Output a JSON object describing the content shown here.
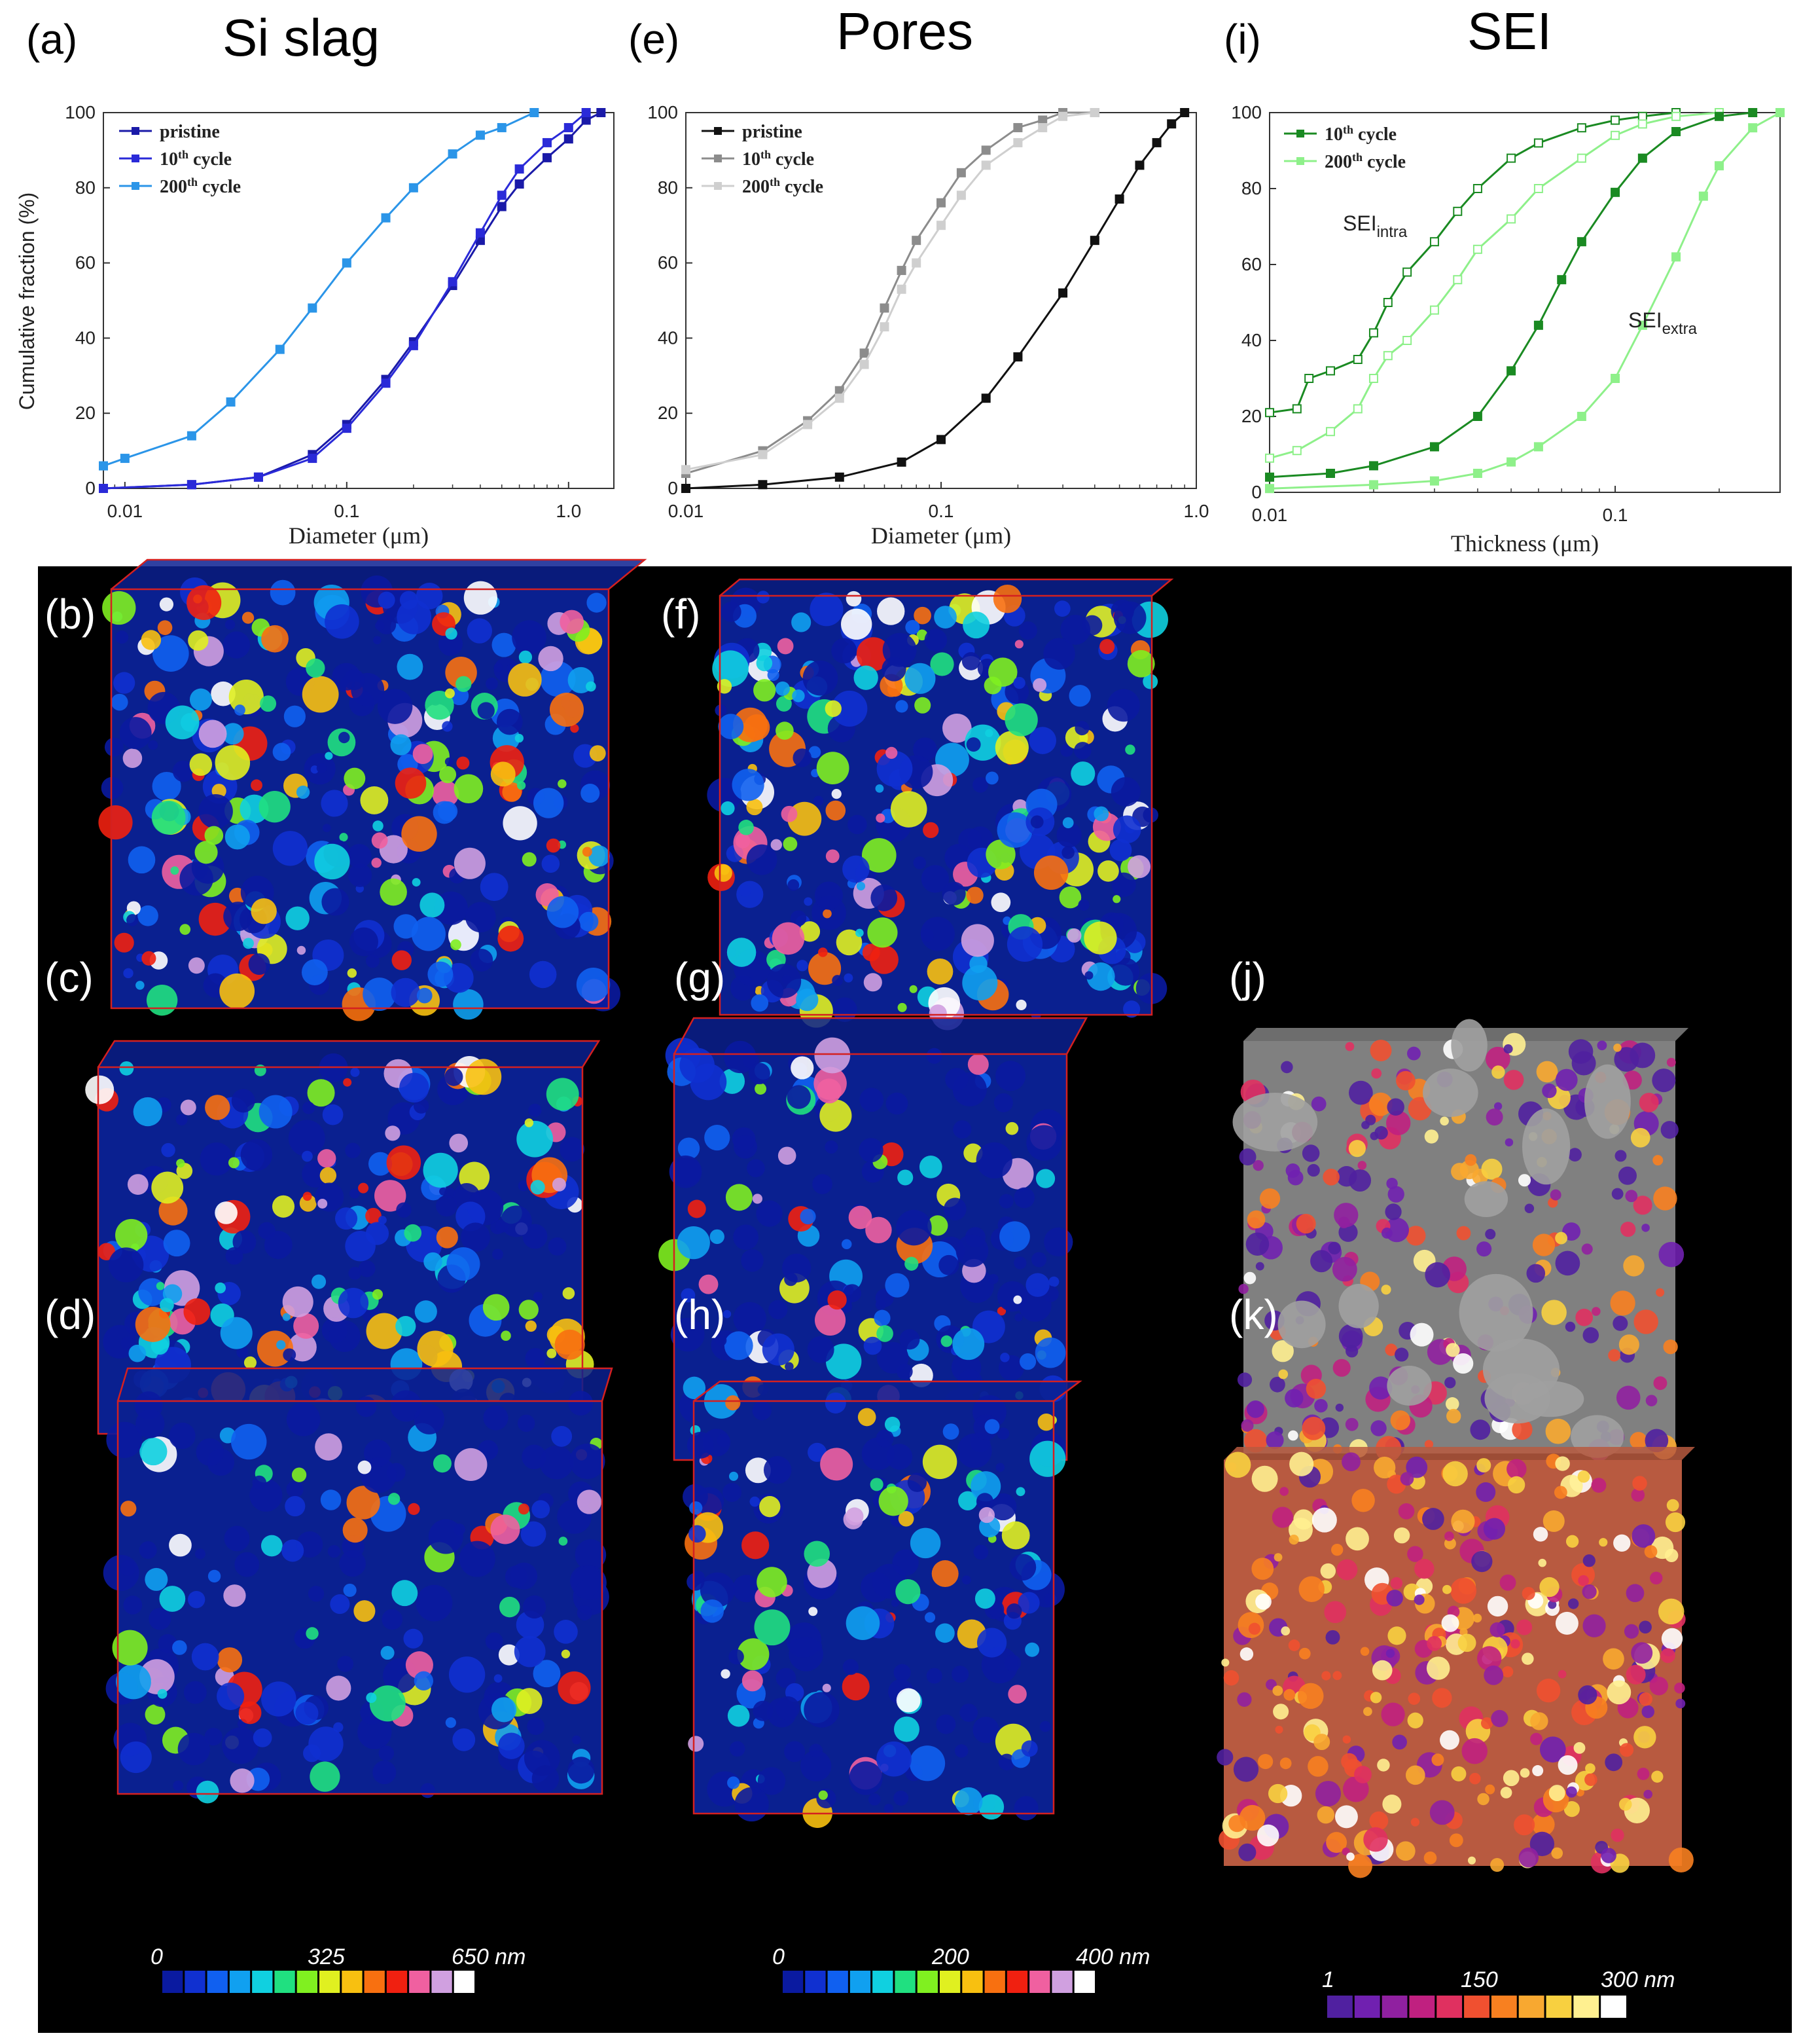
{
  "figure": {
    "column_titles": [
      "Si slag",
      "Pores",
      "SEI"
    ],
    "panel_letters": {
      "a": "(a)",
      "b": "(b)",
      "c": "(c)",
      "d": "(d)",
      "e": "(e)",
      "f": "(f)",
      "g": "(g)",
      "h": "(h)",
      "i": "(i)",
      "j": "(j)",
      "k": "(k)"
    },
    "annotations": {
      "sei_intra_base": "SEI",
      "sei_intra_sub": "intra",
      "sei_extra_base": "SEI",
      "sei_extra_sub": "extra"
    },
    "colorbars": [
      {
        "min": "0",
        "mid": "325",
        "max": "650 nm",
        "palette": "jet"
      },
      {
        "min": "0",
        "mid": "200",
        "max": "400 nm",
        "palette": "jet"
      },
      {
        "min": "1",
        "mid": "150",
        "max": "300 nm",
        "palette": "fire"
      }
    ],
    "volume_renderings": [
      {
        "panel": "b",
        "palette": "jet-dense"
      },
      {
        "panel": "c",
        "palette": "jet-medium"
      },
      {
        "panel": "d",
        "palette": "jet-sparse"
      },
      {
        "panel": "f",
        "palette": "jet-dense"
      },
      {
        "panel": "g",
        "palette": "jet-sparse"
      },
      {
        "panel": "h",
        "palette": "jet-sparse"
      },
      {
        "panel": "j",
        "palette": "fire-gray"
      },
      {
        "panel": "k",
        "palette": "fire-dense"
      }
    ],
    "colors": {
      "si_pristine": "#1a1aa8",
      "si_10": "#2a2ad8",
      "si_200": "#2b95e8",
      "pore_pristine": "#111111",
      "pore_10": "#8c8c8c",
      "pore_200": "#cfcfcf",
      "sei_10": "#1a8a22",
      "sei_200": "#8ef08a",
      "box_edge": "#d42020",
      "background": "#000000"
    }
  },
  "chart_data": [
    {
      "type": "line",
      "panel": "a",
      "title": "",
      "xlabel": "Diameter (μm)",
      "ylabel": "Cumulative fraction (%)",
      "xscale": "log",
      "xlim": [
        0.008,
        1.6
      ],
      "ylim": [
        0,
        100
      ],
      "xticks": [
        0.01,
        0.1,
        1.0
      ],
      "xtick_labels": [
        "0.01",
        "0.1",
        "1.0"
      ],
      "yticks": [
        0,
        20,
        40,
        60,
        80,
        100
      ],
      "ytick_labels": [
        "0",
        "20",
        "40",
        "60",
        "80",
        "100"
      ],
      "legend": "top-left",
      "series": [
        {
          "name": "pristine",
          "sup": "",
          "color": "#1a1aa8",
          "marker": "square",
          "x": [
            0.008,
            0.02,
            0.04,
            0.07,
            0.1,
            0.15,
            0.2,
            0.3,
            0.4,
            0.5,
            0.6,
            0.8,
            1.0,
            1.2,
            1.4
          ],
          "y": [
            0,
            1,
            3,
            9,
            17,
            29,
            39,
            54,
            66,
            75,
            81,
            88,
            93,
            98,
            100
          ]
        },
        {
          "name": "10",
          "sup": "th",
          "suffix": " cycle",
          "color": "#2a2ad8",
          "marker": "square",
          "x": [
            0.008,
            0.02,
            0.04,
            0.07,
            0.1,
            0.15,
            0.2,
            0.3,
            0.4,
            0.5,
            0.6,
            0.8,
            1.0,
            1.2
          ],
          "y": [
            0,
            1,
            3,
            8,
            16,
            28,
            38,
            55,
            68,
            78,
            85,
            92,
            96,
            100
          ]
        },
        {
          "name": "200",
          "sup": "th",
          "suffix": " cycle",
          "color": "#2b95e8",
          "marker": "square",
          "x": [
            0.008,
            0.01,
            0.02,
            0.03,
            0.05,
            0.07,
            0.1,
            0.15,
            0.2,
            0.3,
            0.4,
            0.5,
            0.7
          ],
          "y": [
            6,
            8,
            14,
            23,
            37,
            48,
            60,
            72,
            80,
            89,
            94,
            96,
            100
          ]
        }
      ]
    },
    {
      "type": "line",
      "panel": "e",
      "title": "",
      "xlabel": "Diameter (μm)",
      "ylabel": "",
      "xscale": "log",
      "xlim": [
        0.01,
        1.0
      ],
      "ylim": [
        0,
        100
      ],
      "xticks": [
        0.01,
        0.1,
        1.0
      ],
      "xtick_labels": [
        "0.01",
        "0.1",
        "1.0"
      ],
      "yticks": [
        0,
        20,
        40,
        60,
        80,
        100
      ],
      "ytick_labels": [
        "0",
        "20",
        "40",
        "60",
        "80",
        "100"
      ],
      "legend": "top-left",
      "series": [
        {
          "name": "pristine",
          "sup": "",
          "color": "#111111",
          "marker": "square",
          "x": [
            0.01,
            0.02,
            0.04,
            0.07,
            0.1,
            0.15,
            0.2,
            0.3,
            0.4,
            0.5,
            0.6,
            0.7,
            0.8,
            0.9
          ],
          "y": [
            0,
            1,
            3,
            7,
            13,
            24,
            35,
            52,
            66,
            77,
            86,
            92,
            97,
            100
          ]
        },
        {
          "name": "10",
          "sup": "th",
          "suffix": " cycle",
          "color": "#8c8c8c",
          "marker": "square",
          "x": [
            0.01,
            0.02,
            0.03,
            0.04,
            0.05,
            0.06,
            0.07,
            0.08,
            0.1,
            0.12,
            0.15,
            0.2,
            0.25,
            0.3,
            0.4
          ],
          "y": [
            4,
            10,
            18,
            26,
            36,
            48,
            58,
            66,
            76,
            84,
            90,
            96,
            98,
            100,
            100
          ]
        },
        {
          "name": "200",
          "sup": "th",
          "suffix": " cycle",
          "color": "#cfcfcf",
          "marker": "square",
          "x": [
            0.01,
            0.02,
            0.03,
            0.04,
            0.05,
            0.06,
            0.07,
            0.08,
            0.1,
            0.12,
            0.15,
            0.2,
            0.25,
            0.3,
            0.4
          ],
          "y": [
            5,
            9,
            17,
            24,
            33,
            43,
            53,
            60,
            70,
            78,
            86,
            92,
            96,
            99,
            100
          ]
        }
      ]
    },
    {
      "type": "line",
      "panel": "i",
      "title": "",
      "xlabel": "Thickness (μm)",
      "ylabel": "",
      "xscale": "log",
      "xlim": [
        0.01,
        0.3
      ],
      "ylim": [
        0,
        100
      ],
      "xticks": [
        0.01,
        0.1
      ],
      "xtick_labels": [
        "0.01",
        "0.1"
      ],
      "yticks": [
        0,
        20,
        40,
        60,
        80,
        100
      ],
      "ytick_labels": [
        "0",
        "20",
        "40",
        "60",
        "80",
        "100"
      ],
      "legend": "top-left",
      "series": [
        {
          "name": "10",
          "sup": "th",
          "suffix": " cycle",
          "group": "SEI intra",
          "color": "#1a8a22",
          "marker": "open-square",
          "x": [
            0.01,
            0.012,
            0.013,
            0.015,
            0.018,
            0.02,
            0.022,
            0.025,
            0.03,
            0.035,
            0.04,
            0.05,
            0.06,
            0.08,
            0.1,
            0.12,
            0.15
          ],
          "y": [
            21,
            22,
            30,
            32,
            35,
            42,
            50,
            58,
            66,
            74,
            80,
            88,
            92,
            96,
            98,
            99,
            100
          ]
        },
        {
          "name": "200",
          "sup": "th",
          "suffix": " cycle",
          "group": "SEI intra",
          "color": "#8ef08a",
          "marker": "open-square",
          "x": [
            0.01,
            0.012,
            0.015,
            0.018,
            0.02,
            0.022,
            0.025,
            0.03,
            0.035,
            0.04,
            0.05,
            0.06,
            0.08,
            0.1,
            0.12,
            0.15,
            0.2
          ],
          "y": [
            9,
            11,
            16,
            22,
            30,
            36,
            40,
            48,
            56,
            64,
            72,
            80,
            88,
            94,
            97,
            99,
            100
          ]
        },
        {
          "name": "10",
          "sup": "th",
          "suffix": " cycle",
          "group": "SEI extra",
          "color": "#1a8a22",
          "marker": "square",
          "x": [
            0.01,
            0.015,
            0.02,
            0.03,
            0.04,
            0.05,
            0.06,
            0.07,
            0.08,
            0.1,
            0.12,
            0.15,
            0.2,
            0.25
          ],
          "y": [
            4,
            5,
            7,
            12,
            20,
            32,
            44,
            56,
            66,
            79,
            88,
            95,
            99,
            100
          ]
        },
        {
          "name": "200",
          "sup": "th",
          "suffix": " cycle",
          "group": "SEI extra",
          "color": "#8ef08a",
          "marker": "square",
          "x": [
            0.01,
            0.02,
            0.03,
            0.04,
            0.05,
            0.06,
            0.08,
            0.1,
            0.12,
            0.15,
            0.18,
            0.2,
            0.25,
            0.3
          ],
          "y": [
            1,
            2,
            3,
            5,
            8,
            12,
            20,
            30,
            44,
            62,
            78,
            86,
            96,
            100
          ]
        }
      ]
    }
  ]
}
